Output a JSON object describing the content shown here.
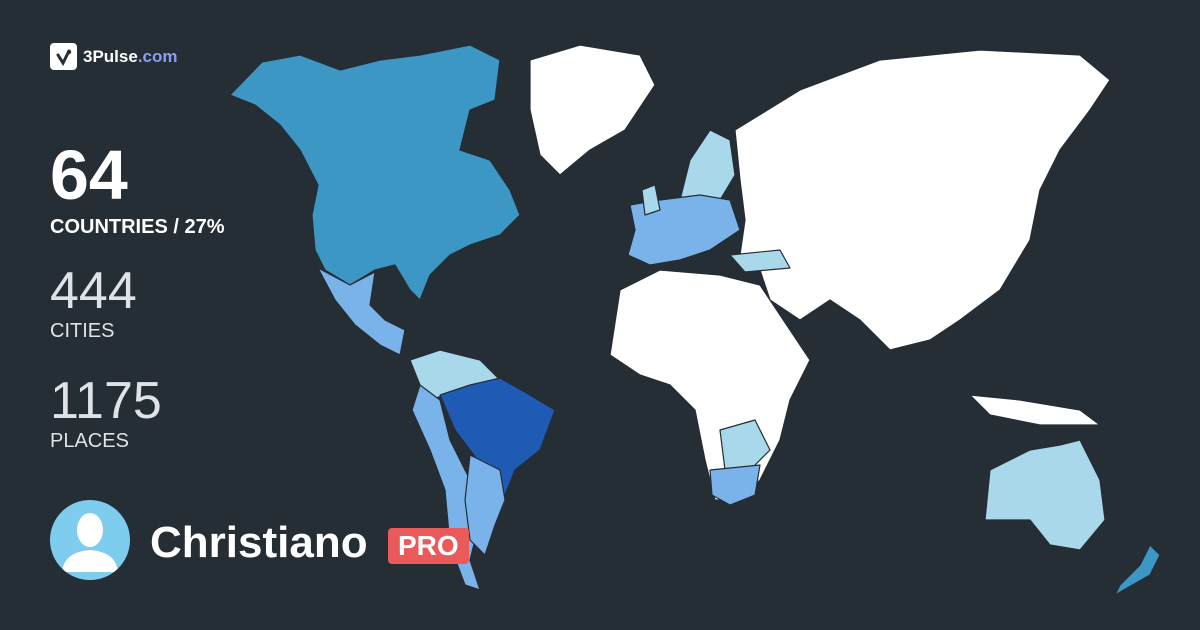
{
  "brand": {
    "name": "3Pulse",
    "domain": ".com",
    "icon": "pulse-check-icon"
  },
  "stats": {
    "countries": {
      "value": "64",
      "label": "COUNTRIES / 27%"
    },
    "cities": {
      "value": "444",
      "label": "CITIES"
    },
    "places": {
      "value": "1175",
      "label": "PLACES"
    }
  },
  "user": {
    "name": "Christiano",
    "badge": "PRO",
    "avatar": "default-user-avatar-icon"
  },
  "colors": {
    "background": "#252d35",
    "unvisited": "#ffffff",
    "level_light": "#a8d8ea",
    "level_medium": "#7ab3ea",
    "level_teal": "#3d97c4",
    "level_dark": "#1f5bb5",
    "pro_badge": "#ea5a5a",
    "brand_accent": "#8b9ef0"
  }
}
